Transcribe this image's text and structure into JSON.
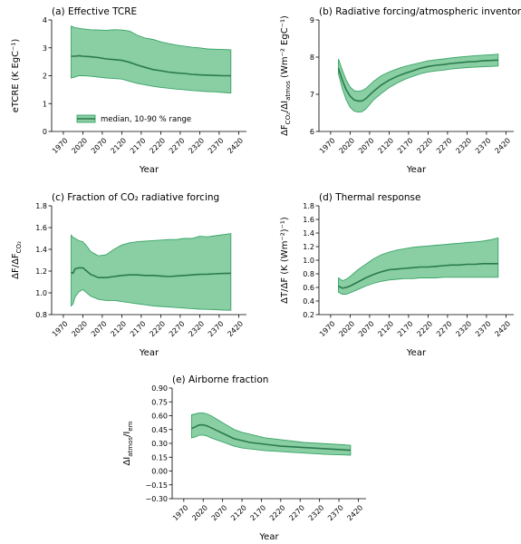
{
  "chart_data": [
    {
      "type": "area",
      "title": "(a) Effective TCRE",
      "xlabel": "Year",
      "ylabel": "eTCRE (K EgC⁻¹)",
      "xlim": [
        1940,
        2440
      ],
      "ylim": [
        0,
        4
      ],
      "xticks": [
        1970,
        2020,
        2070,
        2120,
        2170,
        2220,
        2270,
        2320,
        2370,
        2420
      ],
      "yticks": [
        "0",
        "1",
        "2",
        "3",
        "4"
      ],
      "legend": {
        "label": "median, 10-90 % range",
        "placement": "lower-center"
      },
      "x": [
        1990,
        2000,
        2010,
        2020,
        2040,
        2060,
        2080,
        2100,
        2120,
        2140,
        2160,
        2180,
        2200,
        2220,
        2240,
        2260,
        2280,
        2300,
        2320,
        2340,
        2360,
        2380,
        2400
      ],
      "median": [
        2.7,
        2.7,
        2.72,
        2.7,
        2.68,
        2.65,
        2.6,
        2.58,
        2.55,
        2.48,
        2.38,
        2.3,
        2.22,
        2.18,
        2.13,
        2.1,
        2.08,
        2.05,
        2.03,
        2.02,
        2.01,
        2.0,
        2.0
      ],
      "p10": [
        1.92,
        1.95,
        2.0,
        2.0,
        1.98,
        1.95,
        1.92,
        1.9,
        1.88,
        1.8,
        1.72,
        1.67,
        1.62,
        1.58,
        1.55,
        1.52,
        1.5,
        1.47,
        1.45,
        1.43,
        1.42,
        1.4,
        1.38
      ],
      "p90": [
        3.78,
        3.72,
        3.7,
        3.68,
        3.65,
        3.64,
        3.63,
        3.65,
        3.64,
        3.6,
        3.45,
        3.35,
        3.3,
        3.22,
        3.15,
        3.1,
        3.06,
        3.02,
        3.0,
        2.96,
        2.95,
        2.94,
        2.93
      ]
    },
    {
      "type": "area",
      "title": "(b) Radiative forcing/atmospheric inventory",
      "xlabel": "Year",
      "ylabel": "ΔF_CO₂/ΔI_atmos (Wm⁻² EgC⁻¹)",
      "ylabel_parts": {
        "start": "ΔF",
        "sub1": "CO₂",
        "mid": "/ΔI",
        "sub2": "atmos",
        "end": " (Wm⁻² EgC⁻¹)"
      },
      "xlim": [
        1940,
        2440
      ],
      "ylim": [
        6,
        9
      ],
      "xticks": [
        1970,
        2020,
        2070,
        2120,
        2170,
        2220,
        2270,
        2320,
        2370,
        2420
      ],
      "yticks": [
        "6",
        "7",
        "8",
        "9"
      ],
      "x": [
        1990,
        2000,
        2010,
        2020,
        2030,
        2040,
        2050,
        2060,
        2070,
        2080,
        2100,
        2120,
        2140,
        2160,
        2180,
        2200,
        2220,
        2240,
        2260,
        2280,
        2300,
        2320,
        2340,
        2360,
        2380,
        2400
      ],
      "median": [
        7.7,
        7.38,
        7.12,
        6.95,
        6.85,
        6.82,
        6.82,
        6.88,
        6.98,
        7.08,
        7.25,
        7.38,
        7.48,
        7.56,
        7.63,
        7.7,
        7.75,
        7.78,
        7.8,
        7.83,
        7.85,
        7.87,
        7.88,
        7.9,
        7.91,
        7.92
      ],
      "p10": [
        7.55,
        7.15,
        6.85,
        6.65,
        6.55,
        6.52,
        6.53,
        6.6,
        6.72,
        6.85,
        7.02,
        7.18,
        7.3,
        7.4,
        7.48,
        7.55,
        7.6,
        7.63,
        7.65,
        7.68,
        7.7,
        7.72,
        7.73,
        7.74,
        7.75,
        7.76
      ],
      "p90": [
        7.95,
        7.65,
        7.38,
        7.2,
        7.1,
        7.08,
        7.1,
        7.15,
        7.25,
        7.35,
        7.5,
        7.6,
        7.68,
        7.75,
        7.8,
        7.85,
        7.9,
        7.93,
        7.95,
        7.98,
        8.0,
        8.02,
        8.04,
        8.05,
        8.06,
        8.08
      ]
    },
    {
      "type": "area",
      "title": "(c) Fraction of CO₂ radiative forcing",
      "xlabel": "Year",
      "ylabel": "ΔF/ΔF_CO₂",
      "ylabel_parts": {
        "start": "ΔF/ΔF",
        "sub1": "CO₂"
      },
      "xlim": [
        1940,
        2440
      ],
      "ylim": [
        0.8,
        1.8
      ],
      "xticks": [
        1970,
        2020,
        2070,
        2120,
        2170,
        2220,
        2270,
        2320,
        2370,
        2420
      ],
      "yticks": [
        "0.8",
        "1.0",
        "1.2",
        "1.4",
        "1.6",
        "1.8"
      ],
      "x": [
        1990,
        1995,
        2000,
        2010,
        2020,
        2030,
        2040,
        2060,
        2080,
        2100,
        2120,
        2140,
        2160,
        2180,
        2200,
        2220,
        2240,
        2260,
        2280,
        2300,
        2320,
        2340,
        2360,
        2380,
        2400
      ],
      "median": [
        1.19,
        1.18,
        1.22,
        1.23,
        1.23,
        1.2,
        1.17,
        1.14,
        1.14,
        1.15,
        1.16,
        1.165,
        1.165,
        1.16,
        1.16,
        1.155,
        1.15,
        1.155,
        1.16,
        1.165,
        1.17,
        1.172,
        1.175,
        1.178,
        1.18
      ],
      "p10": [
        0.88,
        0.9,
        0.96,
        1.01,
        1.03,
        1.0,
        0.97,
        0.94,
        0.93,
        0.93,
        0.92,
        0.91,
        0.9,
        0.89,
        0.88,
        0.875,
        0.87,
        0.865,
        0.86,
        0.855,
        0.85,
        0.848,
        0.845,
        0.842,
        0.84
      ],
      "p90": [
        1.53,
        1.51,
        1.5,
        1.48,
        1.47,
        1.43,
        1.38,
        1.34,
        1.35,
        1.4,
        1.44,
        1.46,
        1.47,
        1.475,
        1.48,
        1.485,
        1.49,
        1.49,
        1.5,
        1.5,
        1.52,
        1.515,
        1.525,
        1.535,
        1.545
      ]
    },
    {
      "type": "area",
      "title": "(d) Thermal response",
      "xlabel": "Year",
      "ylabel": "ΔT/ΔF (K (Wm⁻²)⁻¹)",
      "xlim": [
        1940,
        2440
      ],
      "ylim": [
        0.2,
        1.8
      ],
      "xticks": [
        1970,
        2020,
        2070,
        2120,
        2170,
        2220,
        2270,
        2320,
        2370,
        2420
      ],
      "yticks": [
        "0.2",
        "0.4",
        "0.6",
        "0.8",
        "1.0",
        "1.2",
        "1.4",
        "1.6",
        "1.8"
      ],
      "x": [
        1990,
        2000,
        2010,
        2020,
        2040,
        2060,
        2080,
        2100,
        2120,
        2140,
        2160,
        2180,
        2200,
        2220,
        2240,
        2260,
        2280,
        2300,
        2320,
        2340,
        2360,
        2380,
        2400
      ],
      "median": [
        0.62,
        0.59,
        0.6,
        0.62,
        0.68,
        0.74,
        0.79,
        0.83,
        0.86,
        0.87,
        0.88,
        0.89,
        0.9,
        0.9,
        0.91,
        0.92,
        0.93,
        0.93,
        0.94,
        0.94,
        0.95,
        0.95,
        0.95
      ],
      "p10": [
        0.53,
        0.5,
        0.5,
        0.52,
        0.57,
        0.62,
        0.66,
        0.69,
        0.71,
        0.72,
        0.73,
        0.73,
        0.74,
        0.74,
        0.74,
        0.75,
        0.75,
        0.75,
        0.75,
        0.75,
        0.75,
        0.75,
        0.75
      ],
      "p90": [
        0.74,
        0.7,
        0.72,
        0.76,
        0.86,
        0.94,
        1.02,
        1.08,
        1.12,
        1.15,
        1.17,
        1.19,
        1.2,
        1.21,
        1.22,
        1.23,
        1.24,
        1.25,
        1.26,
        1.27,
        1.28,
        1.3,
        1.33
      ]
    },
    {
      "type": "area",
      "title": "(e) Airborne fraction",
      "xlabel": "Year",
      "ylabel": "ΔI_atmos/I_em",
      "ylabel_parts": {
        "start": "ΔI",
        "sub1": "atmos",
        "mid": "/I",
        "sub2": "em"
      },
      "xlim": [
        1940,
        2440
      ],
      "ylim": [
        -0.3,
        0.9
      ],
      "xticks": [
        1970,
        2020,
        2070,
        2120,
        2170,
        2220,
        2270,
        2320,
        2370,
        2420
      ],
      "yticks": [
        "0.90",
        "0.75",
        "0.60",
        "0.45",
        "0.30",
        "0.15",
        "0.00",
        "−0.15",
        "−0.30"
      ],
      "ytick_values": [
        0.9,
        0.75,
        0.6,
        0.45,
        0.3,
        0.15,
        0.0,
        -0.15,
        -0.3
      ],
      "x": [
        1990,
        2000,
        2010,
        2020,
        2030,
        2040,
        2060,
        2080,
        2100,
        2120,
        2140,
        2160,
        2180,
        2200,
        2220,
        2240,
        2260,
        2280,
        2300,
        2320,
        2340,
        2360,
        2380,
        2400
      ],
      "median": [
        0.46,
        0.48,
        0.5,
        0.5,
        0.49,
        0.47,
        0.43,
        0.39,
        0.35,
        0.33,
        0.31,
        0.3,
        0.29,
        0.28,
        0.27,
        0.265,
        0.26,
        0.255,
        0.25,
        0.245,
        0.24,
        0.235,
        0.23,
        0.225
      ],
      "p10": [
        0.36,
        0.37,
        0.39,
        0.39,
        0.38,
        0.36,
        0.33,
        0.3,
        0.27,
        0.25,
        0.24,
        0.23,
        0.22,
        0.215,
        0.21,
        0.205,
        0.2,
        0.195,
        0.19,
        0.185,
        0.18,
        0.178,
        0.175,
        0.172
      ],
      "p90": [
        0.61,
        0.62,
        0.63,
        0.63,
        0.62,
        0.6,
        0.55,
        0.5,
        0.45,
        0.42,
        0.4,
        0.38,
        0.36,
        0.35,
        0.34,
        0.33,
        0.32,
        0.31,
        0.305,
        0.3,
        0.295,
        0.29,
        0.285,
        0.28
      ]
    }
  ]
}
